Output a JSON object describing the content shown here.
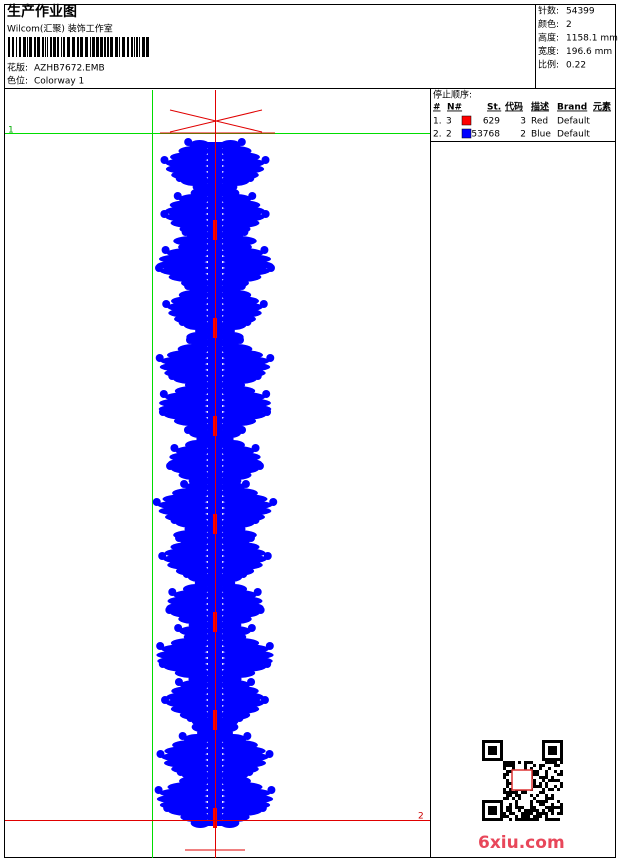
{
  "header": {
    "title": "生产作业图",
    "studio": "Wilcom(汇聚) 装饰工作室",
    "design_label": "花版:",
    "design": "AZHB7672.EMB",
    "colorway_label": "色位:",
    "colorway": "Colorway 1"
  },
  "stats": [
    {
      "label": "针数:",
      "value": "54399"
    },
    {
      "label": "颜色:",
      "value": "2"
    },
    {
      "label": "高度:",
      "value": "1158.1 mm"
    },
    {
      "label": "宽度:",
      "value": "196.6 mm"
    },
    {
      "label": "比例:",
      "value": "0.22"
    }
  ],
  "stop_sequence": {
    "title": "停止顺序:",
    "columns": [
      "#",
      "N#",
      "St.",
      "代码",
      "描述",
      "Brand",
      "元素"
    ],
    "rows": [
      {
        "index": "1.",
        "needle": "3",
        "color": "#ff0000",
        "stitches": "629",
        "code": "3",
        "description": "Red",
        "brand": "Default"
      },
      {
        "index": "2.",
        "needle": "2",
        "color": "#0000ff",
        "stitches": "53768",
        "code": "2",
        "description": "Blue",
        "brand": "Default"
      }
    ]
  },
  "markers": {
    "start": "1",
    "end": "2"
  },
  "watermark": "6xiu.com"
}
